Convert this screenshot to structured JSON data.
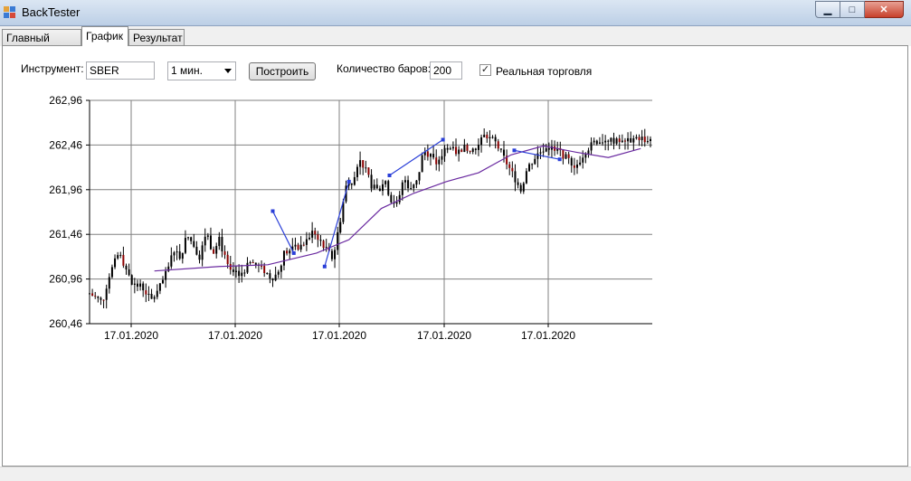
{
  "window": {
    "title": "BackTester",
    "minimize": "▁",
    "maximize": "□",
    "close": "✕"
  },
  "tabs": [
    {
      "label": "Главный экран",
      "active": false
    },
    {
      "label": "График",
      "active": true
    },
    {
      "label": "Результат",
      "active": false
    }
  ],
  "controls": {
    "instrument_label": "Инструмент:",
    "instrument_value": "SBER",
    "timeframe_value": "1 мин.",
    "build_button": "Построить",
    "bars_label": "Количество баров:",
    "bars_value": "200",
    "real_trading_label": "Реальная торговля",
    "real_trading_checked": true
  },
  "chart_data": {
    "type": "candlestick",
    "y_ticks": [
      "262,96",
      "262,46",
      "261,96",
      "261,46",
      "260,96",
      "260,46"
    ],
    "ylim": [
      260.46,
      262.96
    ],
    "x_ticks": [
      "17.01.2020",
      "17.01.2020",
      "17.01.2020",
      "17.01.2020",
      "17.01.2020"
    ],
    "grid": true,
    "bars": 200,
    "colors": {
      "candle": "#000000",
      "candle_down": "#8b0000",
      "ma_line": "#6a2aa0",
      "trade_line": "#2a3fd8",
      "grid": "#808080"
    },
    "close_path": [
      [
        0,
        260.8
      ],
      [
        8,
        260.7
      ],
      [
        12,
        261.0
      ],
      [
        18,
        261.25
      ],
      [
        22,
        261.1
      ],
      [
        26,
        260.9
      ],
      [
        32,
        260.88
      ],
      [
        38,
        260.72
      ],
      [
        42,
        260.82
      ],
      [
        48,
        261.05
      ],
      [
        52,
        261.3
      ],
      [
        56,
        261.2
      ],
      [
        60,
        261.45
      ],
      [
        64,
        261.35
      ],
      [
        68,
        261.2
      ],
      [
        72,
        261.5
      ],
      [
        76,
        261.25
      ],
      [
        80,
        261.4
      ],
      [
        86,
        261.05
      ],
      [
        92,
        261.0
      ],
      [
        100,
        261.15
      ],
      [
        108,
        261.05
      ],
      [
        112,
        260.97
      ],
      [
        116,
        261.02
      ],
      [
        120,
        261.25
      ],
      [
        126,
        261.3
      ],
      [
        132,
        261.35
      ],
      [
        138,
        261.5
      ],
      [
        142,
        261.4
      ],
      [
        146,
        261.3
      ],
      [
        150,
        261.18
      ],
      [
        154,
        261.55
      ],
      [
        158,
        262.0
      ],
      [
        162,
        262.05
      ],
      [
        166,
        262.3
      ],
      [
        170,
        262.2
      ],
      [
        174,
        262.0
      ],
      [
        178,
        261.95
      ],
      [
        182,
        262.05
      ],
      [
        186,
        261.85
      ],
      [
        190,
        261.78
      ],
      [
        194,
        262.1
      ],
      [
        198,
        261.95
      ],
      [
        202,
        262.05
      ],
      [
        206,
        262.4
      ],
      [
        210,
        262.35
      ],
      [
        214,
        262.25
      ],
      [
        220,
        262.45
      ],
      [
        226,
        262.38
      ],
      [
        232,
        262.44
      ],
      [
        238,
        262.4
      ],
      [
        244,
        262.58
      ],
      [
        250,
        262.5
      ],
      [
        256,
        262.3
      ],
      [
        262,
        262.1
      ],
      [
        266,
        261.95
      ],
      [
        270,
        262.2
      ],
      [
        276,
        262.35
      ],
      [
        282,
        262.45
      ],
      [
        290,
        262.38
      ],
      [
        300,
        262.22
      ],
      [
        306,
        262.4
      ],
      [
        312,
        262.5
      ],
      [
        320,
        262.52
      ],
      [
        330,
        262.48
      ],
      [
        338,
        262.55
      ],
      [
        346,
        262.5
      ]
    ],
    "ma_path": [
      [
        40,
        261.05
      ],
      [
        80,
        261.1
      ],
      [
        110,
        261.12
      ],
      [
        140,
        261.25
      ],
      [
        160,
        261.4
      ],
      [
        180,
        261.75
      ],
      [
        200,
        261.92
      ],
      [
        220,
        262.05
      ],
      [
        240,
        262.15
      ],
      [
        260,
        262.35
      ],
      [
        280,
        262.45
      ],
      [
        300,
        262.38
      ],
      [
        320,
        262.32
      ],
      [
        340,
        262.42
      ]
    ],
    "trade_points": [
      [
        113,
        261.72
      ],
      [
        126,
        261.25
      ],
      [
        145,
        261.1
      ],
      [
        160,
        262.05
      ],
      [
        185,
        262.12
      ],
      [
        218,
        262.52
      ],
      [
        262,
        262.4
      ],
      [
        290,
        262.3
      ]
    ]
  }
}
